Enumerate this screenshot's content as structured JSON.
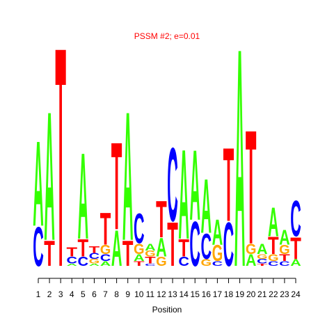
{
  "chart_data": {
    "type": "logo",
    "title": "PSSM #2; e=0.01",
    "xlabel": "Position",
    "colors": {
      "A": "#33ff00",
      "C": "#0000ff",
      "G": "#ffa500",
      "T": "#ff0000"
    },
    "ylim": [
      0,
      2
    ],
    "xlim": [
      1,
      24
    ],
    "xticks": [
      1,
      2,
      3,
      4,
      5,
      6,
      7,
      8,
      9,
      10,
      11,
      12,
      13,
      14,
      15,
      16,
      17,
      18,
      19,
      20,
      21,
      22,
      23,
      24
    ],
    "x": [
      1,
      2,
      3,
      4,
      5,
      6,
      7,
      8,
      9,
      10,
      11,
      12,
      13,
      14,
      15,
      16,
      17,
      18,
      19,
      20,
      21,
      22,
      23,
      24
    ],
    "positions": [
      {
        "letters": [
          "C",
          "A"
        ],
        "heights": [
          0.34,
          0.74
        ]
      },
      {
        "letters": [
          "T",
          "A"
        ],
        "heights": [
          0.22,
          1.12
        ]
      },
      {
        "letters": [
          "T"
        ],
        "heights": [
          1.91
        ]
      },
      {
        "letters": [
          "A",
          "C",
          "T"
        ],
        "heights": [
          0.02,
          0.06,
          0.08
        ]
      },
      {
        "letters": [
          "C",
          "T",
          "A"
        ],
        "heights": [
          0.08,
          0.15,
          0.75
        ]
      },
      {
        "letters": [
          "A",
          "G",
          "C",
          "T"
        ],
        "heights": [
          0.02,
          0.04,
          0.05,
          0.06
        ]
      },
      {
        "letters": [
          "A",
          "C",
          "G",
          "T"
        ],
        "heights": [
          0.04,
          0.06,
          0.08,
          0.28
        ]
      },
      {
        "letters": [
          "A",
          "T"
        ],
        "heights": [
          0.31,
          0.76
        ]
      },
      {
        "letters": [
          "T",
          "A"
        ],
        "heights": [
          0.22,
          1.12
        ]
      },
      {
        "letters": [
          "T",
          "A",
          "G",
          "C"
        ],
        "heights": [
          0.04,
          0.06,
          0.09,
          0.26
        ]
      },
      {
        "letters": [
          "C",
          "T",
          "G",
          "A"
        ],
        "heights": [
          0.02,
          0.06,
          0.05,
          0.06
        ]
      },
      {
        "letters": [
          "G",
          "A",
          "T"
        ],
        "heights": [
          0.08,
          0.16,
          0.32
        ]
      },
      {
        "letters": [
          "T",
          "C"
        ],
        "heights": [
          0.38,
          0.64
        ]
      },
      {
        "letters": [
          "C",
          "T",
          "A"
        ],
        "heights": [
          0.08,
          0.15,
          0.78
        ]
      },
      {
        "letters": [
          "C",
          "A"
        ],
        "heights": [
          0.39,
          0.61
        ]
      },
      {
        "letters": [
          "G",
          "C",
          "A"
        ],
        "heights": [
          0.06,
          0.22,
          0.47
        ]
      },
      {
        "letters": [
          "C",
          "G",
          "A"
        ],
        "heights": [
          0.04,
          0.14,
          0.22
        ]
      },
      {
        "letters": [
          "C",
          "T"
        ],
        "heights": [
          0.38,
          0.64
        ]
      },
      {
        "letters": [
          "A"
        ],
        "heights": [
          1.9
        ]
      },
      {
        "letters": [
          "A",
          "G",
          "T"
        ],
        "heights": [
          0.1,
          0.09,
          0.99
        ]
      },
      {
        "letters": [
          "T",
          "C",
          "G",
          "A"
        ],
        "heights": [
          0.02,
          0.04,
          0.04,
          0.09
        ]
      },
      {
        "letters": [
          "C",
          "G",
          "T",
          "A"
        ],
        "heights": [
          0.04,
          0.06,
          0.15,
          0.25
        ]
      },
      {
        "letters": [
          "C",
          "T",
          "G",
          "A"
        ],
        "heights": [
          0.04,
          0.06,
          0.08,
          0.13
        ]
      },
      {
        "letters": [
          "A",
          "T",
          "C"
        ],
        "heights": [
          0.06,
          0.19,
          0.31
        ]
      }
    ]
  }
}
